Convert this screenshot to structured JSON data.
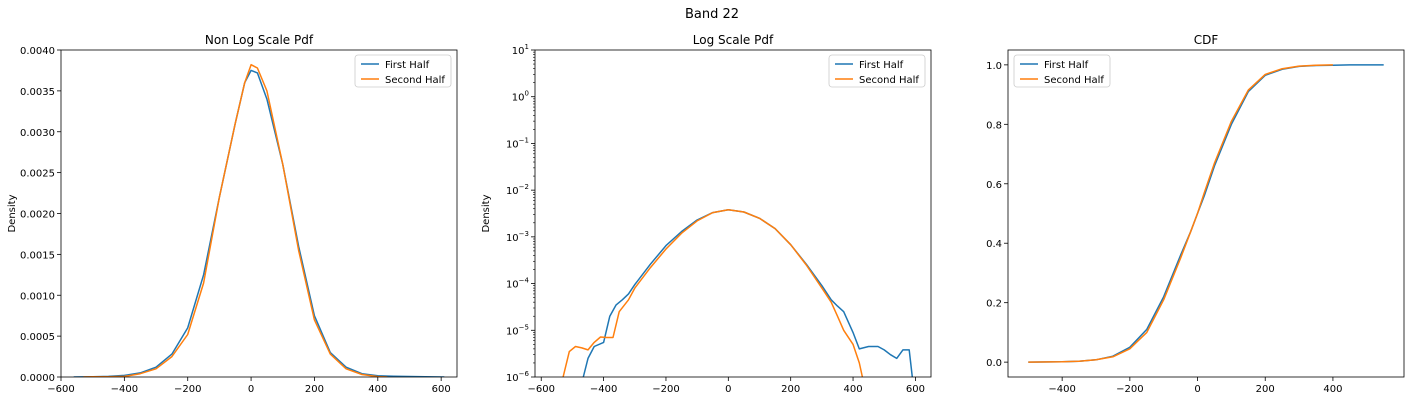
{
  "figure": {
    "suptitle": "Band 22"
  },
  "chart_data": [
    {
      "type": "line",
      "title": "Non Log Scale Pdf",
      "xlabel": "",
      "ylabel": "Density",
      "xlim": [
        -600,
        650
      ],
      "ylim": [
        0,
        0.004
      ],
      "yscale": "linear",
      "xticks": [
        -600,
        -400,
        -200,
        0,
        200,
        400,
        600
      ],
      "xtick_labels": [
        "−600",
        "−400",
        "−200",
        "0",
        "200",
        "400",
        "600"
      ],
      "yticks": [
        0,
        0.0005,
        0.001,
        0.0015,
        0.002,
        0.0025,
        0.003,
        0.0035,
        0.004
      ],
      "ytick_labels": [
        "0.0000",
        "0.0005",
        "0.0010",
        "0.0015",
        "0.0020",
        "0.0025",
        "0.0030",
        "0.0035",
        "0.0040"
      ],
      "grid": false,
      "legend": "upper right",
      "series": [
        {
          "name": "First Half",
          "color": "#1f77b4",
          "x": [
            -560,
            -500,
            -450,
            -400,
            -350,
            -300,
            -250,
            -200,
            -150,
            -100,
            -50,
            -20,
            0,
            20,
            50,
            100,
            150,
            200,
            250,
            300,
            350,
            400,
            450,
            500,
            550,
            610
          ],
          "y": [
            0,
            3e-06,
            7e-06,
            2e-05,
            5e-05,
            0.00012,
            0.00028,
            0.0006,
            0.00125,
            0.0022,
            0.0031,
            0.0036,
            0.00375,
            0.00372,
            0.0034,
            0.0026,
            0.0016,
            0.00075,
            0.0003,
            0.00012,
            4e-05,
            1.5e-05,
            8e-06,
            6e-06,
            4e-06,
            0
          ]
        },
        {
          "name": "Second Half",
          "color": "#ff7f0e",
          "x": [
            -530,
            -500,
            -450,
            -400,
            -350,
            -300,
            -250,
            -200,
            -150,
            -100,
            -50,
            -20,
            0,
            20,
            50,
            100,
            150,
            200,
            250,
            300,
            350,
            400,
            430
          ],
          "y": [
            0,
            4e-06,
            4e-06,
            7e-06,
            4e-05,
            0.0001,
            0.00025,
            0.00052,
            0.00115,
            0.0022,
            0.0031,
            0.0036,
            0.00382,
            0.00378,
            0.0035,
            0.0026,
            0.00155,
            0.0007,
            0.00028,
            0.0001,
            3e-05,
            5e-06,
            0
          ]
        }
      ]
    },
    {
      "type": "line",
      "title": "Log Scale Pdf",
      "xlabel": "",
      "ylabel": "Density",
      "xlim": [
        -620,
        650
      ],
      "ylim": [
        1e-06,
        10
      ],
      "yscale": "log",
      "xticks": [
        -600,
        -400,
        -200,
        0,
        200,
        400,
        600
      ],
      "xtick_labels": [
        "−600",
        "−400",
        "−200",
        "0",
        "200",
        "400",
        "600"
      ],
      "yticks": [
        1e-06,
        1e-05,
        0.0001,
        0.001,
        0.01,
        0.1,
        1,
        10
      ],
      "ytick_labels": [
        {
          "base": "10",
          "exp": "−6"
        },
        {
          "base": "10",
          "exp": "−5"
        },
        {
          "base": "10",
          "exp": "−4"
        },
        {
          "base": "10",
          "exp": "−3"
        },
        {
          "base": "10",
          "exp": "−2"
        },
        {
          "base": "10",
          "exp": "−1"
        },
        {
          "base": "10",
          "exp": "0"
        },
        {
          "base": "10",
          "exp": "1"
        }
      ],
      "grid": false,
      "legend": "upper right",
      "series": [
        {
          "name": "First Half",
          "color": "#1f77b4",
          "x": [
            -465,
            -450,
            -430,
            -400,
            -380,
            -360,
            -340,
            -320,
            -300,
            -250,
            -200,
            -150,
            -100,
            -50,
            0,
            50,
            100,
            150,
            200,
            250,
            300,
            330,
            350,
            370,
            400,
            420,
            450,
            480,
            500,
            520,
            540,
            560,
            580,
            590
          ],
          "y": [
            1e-06,
            2.5e-06,
            4.5e-06,
            5.5e-06,
            2e-05,
            3.5e-05,
            4.5e-05,
            6e-05,
            9.5e-05,
            0.00026,
            0.00065,
            0.0013,
            0.0023,
            0.0033,
            0.0038,
            0.0034,
            0.0025,
            0.0015,
            0.00068,
            0.00026,
            9e-05,
            4.5e-05,
            3.3e-05,
            2.5e-05,
            9e-06,
            4e-06,
            4.5e-06,
            4.5e-06,
            3.8e-06,
            3e-06,
            2.5e-06,
            3.8e-06,
            3.8e-06,
            1e-06
          ]
        },
        {
          "name": "Second Half",
          "color": "#ff7f0e",
          "x": [
            -530,
            -510,
            -490,
            -470,
            -450,
            -430,
            -410,
            -390,
            -370,
            -350,
            -320,
            -300,
            -250,
            -200,
            -150,
            -100,
            -50,
            0,
            50,
            100,
            150,
            200,
            250,
            300,
            330,
            350,
            370,
            400,
            420,
            430
          ],
          "y": [
            1e-06,
            3.5e-06,
            4.5e-06,
            4.2e-06,
            3.8e-06,
            5.5e-06,
            7.2e-06,
            7e-06,
            7e-06,
            2.5e-05,
            4.5e-05,
            8e-05,
            0.00022,
            0.00055,
            0.0012,
            0.0022,
            0.0033,
            0.0038,
            0.0034,
            0.0025,
            0.0015,
            0.00068,
            0.00025,
            8e-05,
            4e-05,
            2e-05,
            1e-05,
            5e-06,
            2e-06,
            1e-06
          ]
        }
      ]
    },
    {
      "type": "line",
      "title": "CDF",
      "xlabel": "",
      "ylabel": "",
      "xlim": [
        -560,
        610
      ],
      "ylim": [
        -0.05,
        1.05
      ],
      "yscale": "linear",
      "xticks": [
        -400,
        -200,
        0,
        200,
        400
      ],
      "xtick_labels": [
        "−400",
        "−200",
        "0",
        "200",
        "400"
      ],
      "yticks": [
        0,
        0.2,
        0.4,
        0.6,
        0.8,
        1.0
      ],
      "ytick_labels": [
        "0.0",
        "0.2",
        "0.4",
        "0.6",
        "0.8",
        "1.0"
      ],
      "grid": false,
      "legend": "upper left",
      "series": [
        {
          "name": "First Half",
          "color": "#1f77b4",
          "x": [
            -500,
            -400,
            -350,
            -300,
            -250,
            -200,
            -150,
            -100,
            -50,
            -20,
            0,
            20,
            50,
            100,
            150,
            200,
            250,
            300,
            350,
            400,
            450,
            500,
            550
          ],
          "y": [
            0,
            0.001,
            0.003,
            0.008,
            0.02,
            0.05,
            0.11,
            0.22,
            0.36,
            0.44,
            0.5,
            0.56,
            0.66,
            0.8,
            0.91,
            0.965,
            0.985,
            0.995,
            0.998,
            0.999,
            1.0,
            1.0,
            1.0
          ]
        },
        {
          "name": "Second Half",
          "color": "#ff7f0e",
          "x": [
            -500,
            -400,
            -350,
            -300,
            -250,
            -200,
            -150,
            -100,
            -50,
            -20,
            0,
            20,
            50,
            100,
            150,
            200,
            250,
            300,
            350,
            400
          ],
          "y": [
            0,
            0.001,
            0.003,
            0.008,
            0.018,
            0.045,
            0.1,
            0.21,
            0.35,
            0.44,
            0.5,
            0.57,
            0.67,
            0.81,
            0.915,
            0.968,
            0.987,
            0.996,
            0.999,
            1.0
          ]
        }
      ]
    }
  ]
}
